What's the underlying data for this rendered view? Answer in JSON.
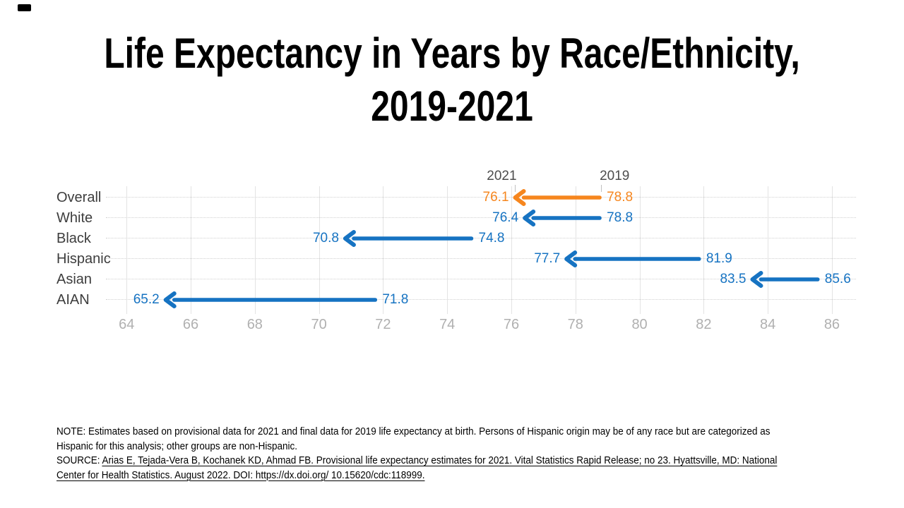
{
  "title": {
    "line1": "Life Expectancy in Years by Race/Ethnicity,",
    "line2": "2019-2021"
  },
  "chart_data": {
    "type": "arrow",
    "title": "Life Expectancy in Years by Race/Ethnicity, 2019-2021",
    "categories": [
      "Overall",
      "White",
      "Black",
      "Hispanic",
      "Asian",
      "AIAN"
    ],
    "series": [
      {
        "name": "2021",
        "values": [
          76.1,
          76.4,
          70.8,
          77.7,
          83.5,
          65.2
        ]
      },
      {
        "name": "2019",
        "values": [
          78.8,
          78.8,
          74.8,
          81.9,
          85.6,
          71.8
        ]
      }
    ],
    "column_headers": {
      "left": "2021",
      "right": "2019"
    },
    "arrow_direction": "from 2019 value to 2021 value (pointing left)",
    "x_ticks": [
      64,
      66,
      68,
      70,
      72,
      74,
      76,
      78,
      80,
      82,
      84,
      86
    ],
    "xlim": [
      63.4,
      86.75
    ],
    "xlabel": "",
    "ylabel": "",
    "grid": "vertical solid gridlines with dotted row leader lines",
    "legend_position": "none",
    "colors": {
      "default": "#1673c2",
      "highlight": "#f6861e"
    },
    "highlight_category": "Overall"
  },
  "notes": {
    "note": "NOTE: Estimates based on provisional data for 2021 and final data for 2019 life expectancy at birth. Persons of Hispanic origin may be of any race but are categorized as Hispanic for this analysis; other groups are non-Hispanic.",
    "source_prefix": "SOURCE: ",
    "source_citation": "Arias E, Tejada-Vera B, Kochanek KD, Ahmad FB. Provisional life expectancy estimates for 2021. Vital Statistics Rapid Release; no 23. Hyattsville, MD: National Center for Health Statistics. August 2022. DOI: https://dx.doi.org/ 10.15620/cdc:118999."
  }
}
